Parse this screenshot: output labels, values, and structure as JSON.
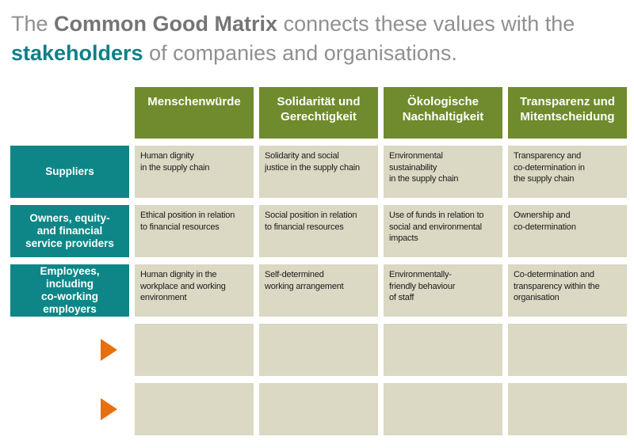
{
  "title": {
    "line1_pre": "The",
    "line1_bold": "Common Good Matrix",
    "line1_post": "connects these values with the",
    "line2_bold": "stakeholders",
    "line2_post": "of companies and organisations."
  },
  "colors": {
    "header_green": "#6f8b2d",
    "stakeholder_teal": "#0e8687",
    "arrow_orange": "#e76f0e",
    "cell_beige": "#dbd8c3",
    "title_gray": "#909090",
    "title_accent_teal": "#0f7f88"
  },
  "columns": [
    "Menschenwürde",
    "Solidarität und\nGerechtigkeit",
    "Ökologische\nNachhaltigkeit",
    "Transparenz und\nMitentscheidung"
  ],
  "rows": [
    {
      "header": "Suppliers",
      "cells": [
        "Human dignity\nin the supply chain",
        "Solidarity and social\njustice in the supply chain",
        "Environmental\nsustainability\nin the supply chain",
        "Transparency and\nco-determination in\nthe supply chain"
      ]
    },
    {
      "header": "Owners, equity-\nand financial\nservice providers",
      "cells": [
        "Ethical position in relation\nto financial resources",
        "Social position in relation\nto financial resources",
        "Use of funds in relation to\nsocial and environmental\nimpacts",
        "Ownership and\nco-determination"
      ]
    },
    {
      "header": "Employees,\nincluding\nco-working\nemployers",
      "cells": [
        "Human dignity in the\nworkplace and working\nenvironment",
        "Self-determined\nworking arrangement",
        "Environmentally-\nfriendly behaviour\nof staff",
        "Co-determination and\ntransparency within the\norganisation"
      ]
    },
    {
      "header": "",
      "cells": [
        "",
        "",
        "",
        ""
      ]
    },
    {
      "header": "",
      "cells": [
        "",
        "",
        "",
        ""
      ]
    }
  ]
}
